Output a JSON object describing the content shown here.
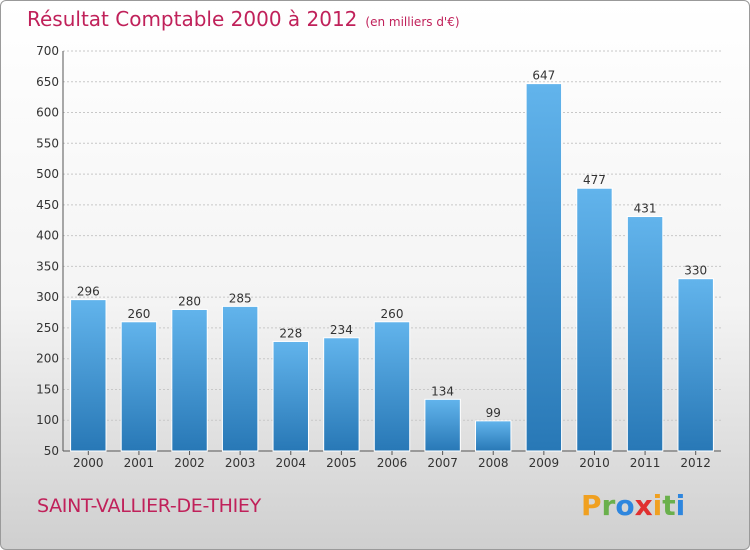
{
  "chart_data": {
    "type": "bar",
    "title": "Résultat Comptable 2000 à 2012",
    "subtitle": "(en milliers d'€)",
    "categories": [
      "2000",
      "2001",
      "2002",
      "2003",
      "2004",
      "2005",
      "2006",
      "2007",
      "2008",
      "2009",
      "2010",
      "2011",
      "2012"
    ],
    "values": [
      296,
      260,
      280,
      285,
      228,
      234,
      260,
      134,
      99,
      647,
      477,
      431,
      330
    ],
    "ylim": [
      50,
      700
    ],
    "yticks": [
      50,
      100,
      150,
      200,
      250,
      300,
      350,
      400,
      450,
      500,
      550,
      600,
      650,
      700
    ],
    "grid": true,
    "xlabel": "",
    "ylabel": ""
  },
  "footer": {
    "commune": "SAINT-VALLIER-DE-THIEY"
  },
  "logo": {
    "letters": [
      "P",
      "r",
      "o",
      "x",
      "i",
      "t",
      "i"
    ],
    "colors": [
      "#f0a020",
      "#6ab04c",
      "#2e86de",
      "#e03030",
      "#f0a020",
      "#6ab04c",
      "#2e86de"
    ]
  },
  "colors": {
    "bar_light": "#62b4ec",
    "bar_dark": "#2878b6",
    "accent": "#c0215a"
  }
}
